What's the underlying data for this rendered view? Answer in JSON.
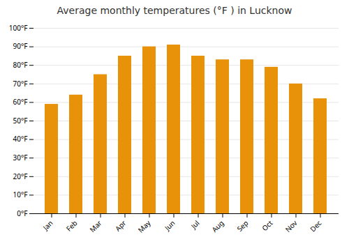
{
  "chart_data": {
    "type": "bar",
    "title": "Average monthly temperatures (°F ) in Lucknow",
    "categories": [
      "Jan",
      "Feb",
      "Mar",
      "Apr",
      "May",
      "Jun",
      "Jul",
      "Aug",
      "Sep",
      "Oct",
      "Nov",
      "Dec"
    ],
    "values": [
      59,
      64,
      75,
      85,
      90,
      91,
      85,
      83,
      83,
      79,
      70,
      62
    ],
    "color": "#E8920A",
    "ylim": [
      0,
      100
    ],
    "yticks": [
      {
        "value": 0,
        "label": "0°F"
      },
      {
        "value": 10,
        "label": "10°F"
      },
      {
        "value": 20,
        "label": "20°F"
      },
      {
        "value": 30,
        "label": "30°F"
      },
      {
        "value": 40,
        "label": "40°F"
      },
      {
        "value": 50,
        "label": "50°F"
      },
      {
        "value": 60,
        "label": "60°F"
      },
      {
        "value": 70,
        "label": "70°F"
      },
      {
        "value": 80,
        "label": "80°F"
      },
      {
        "value": 90,
        "label": "90°F"
      },
      {
        "value": 100,
        "label": "100°F"
      }
    ],
    "grid": true
  }
}
